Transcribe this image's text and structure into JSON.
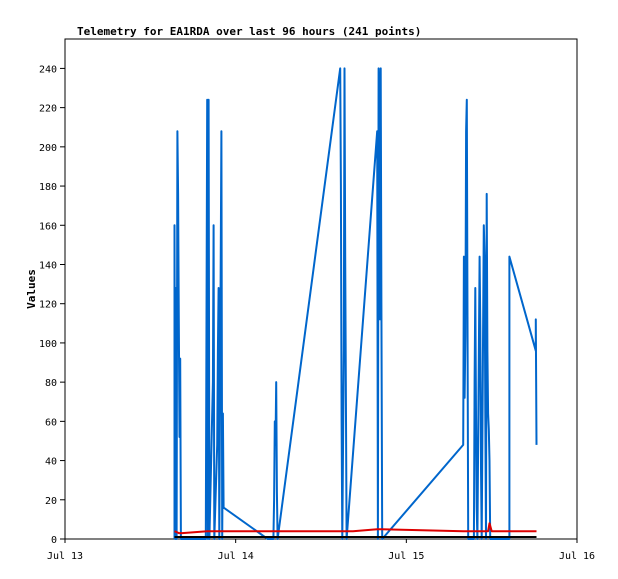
{
  "chart_data": {
    "type": "line",
    "title": "Telemetry for EA1RDA over last 96 hours (241 points)",
    "xlabel": "",
    "ylabel": "Values",
    "xlim": [
      0,
      72
    ],
    "ylim": [
      0,
      255
    ],
    "x_ticks": [
      {
        "x": 0,
        "label": "Jul 13"
      },
      {
        "x": 24,
        "label": "Jul 14"
      },
      {
        "x": 48,
        "label": "Jul 15"
      },
      {
        "x": 72,
        "label": "Jul 16"
      }
    ],
    "y_ticks": [
      0,
      20,
      40,
      60,
      80,
      100,
      120,
      140,
      160,
      180,
      200,
      220,
      240
    ],
    "grid": false,
    "legend": "none",
    "series": [
      {
        "color": "#0066cc",
        "points": [
          [
            15.4,
            0
          ],
          [
            15.4,
            160
          ],
          [
            15.5,
            0
          ],
          [
            15.6,
            128
          ],
          [
            15.7,
            0
          ],
          [
            15.8,
            208
          ],
          [
            15.9,
            176
          ],
          [
            16.0,
            112
          ],
          [
            16.1,
            52
          ],
          [
            16.2,
            92
          ],
          [
            16.3,
            0
          ],
          [
            19.8,
            0
          ],
          [
            19.9,
            112
          ],
          [
            20.0,
            224
          ],
          [
            20.1,
            0
          ],
          [
            20.2,
            224
          ],
          [
            20.3,
            0
          ],
          [
            20.8,
            80
          ],
          [
            20.9,
            160
          ],
          [
            21.0,
            0
          ],
          [
            21.4,
            48
          ],
          [
            21.5,
            96
          ],
          [
            21.6,
            128
          ],
          [
            21.7,
            0
          ],
          [
            22.0,
            208
          ],
          [
            22.1,
            0
          ],
          [
            22.2,
            64
          ],
          [
            22.3,
            16
          ],
          [
            28.5,
            0
          ],
          [
            29.3,
            0
          ],
          [
            29.4,
            20
          ],
          [
            29.5,
            60
          ],
          [
            29.6,
            48
          ],
          [
            29.7,
            80
          ],
          [
            29.8,
            24
          ],
          [
            29.9,
            0
          ],
          [
            38.7,
            240
          ],
          [
            38.8,
            180
          ],
          [
            38.9,
            60
          ],
          [
            39.0,
            0
          ],
          [
            39.2,
            96
          ],
          [
            39.3,
            240
          ],
          [
            39.4,
            144
          ],
          [
            39.5,
            72
          ],
          [
            39.6,
            0
          ],
          [
            43.9,
            208
          ],
          [
            44.0,
            0
          ],
          [
            44.1,
            240
          ],
          [
            44.2,
            224
          ],
          [
            44.3,
            112
          ],
          [
            44.4,
            240
          ],
          [
            44.5,
            120
          ],
          [
            44.6,
            0
          ],
          [
            56.0,
            48
          ],
          [
            56.1,
            144
          ],
          [
            56.2,
            72
          ],
          [
            56.3,
            104
          ],
          [
            56.4,
            208
          ],
          [
            56.5,
            224
          ],
          [
            56.6,
            112
          ],
          [
            56.7,
            0
          ],
          [
            57.5,
            0
          ],
          [
            57.6,
            80
          ],
          [
            57.7,
            128
          ],
          [
            57.8,
            64
          ],
          [
            57.9,
            16
          ],
          [
            58.0,
            0
          ],
          [
            58.3,
            144
          ],
          [
            58.4,
            108
          ],
          [
            58.5,
            36
          ],
          [
            58.6,
            0
          ],
          [
            58.9,
            160
          ],
          [
            59.0,
            144
          ],
          [
            59.1,
            64
          ],
          [
            59.2,
            0
          ],
          [
            59.3,
            176
          ],
          [
            59.4,
            96
          ],
          [
            59.5,
            64
          ],
          [
            59.6,
            56
          ],
          [
            59.7,
            40
          ],
          [
            59.8,
            0
          ],
          [
            62.5,
            0
          ],
          [
            62.5,
            144
          ],
          [
            66.2,
            96
          ],
          [
            66.2,
            112
          ],
          [
            66.3,
            48
          ]
        ]
      },
      {
        "color": "#dd0000",
        "points": [
          [
            15.4,
            4
          ],
          [
            16.0,
            3
          ],
          [
            16.5,
            3
          ],
          [
            20.0,
            4
          ],
          [
            28.5,
            4
          ],
          [
            29.0,
            4
          ],
          [
            38.7,
            4
          ],
          [
            40.5,
            4
          ],
          [
            43.9,
            5
          ],
          [
            44.5,
            5
          ],
          [
            56.0,
            4
          ],
          [
            59.5,
            4
          ],
          [
            59.7,
            8
          ],
          [
            60.0,
            4
          ],
          [
            66.3,
            4
          ]
        ]
      },
      {
        "color": "#000000",
        "points": [
          [
            15.4,
            1
          ],
          [
            66.3,
            1
          ]
        ]
      }
    ]
  }
}
